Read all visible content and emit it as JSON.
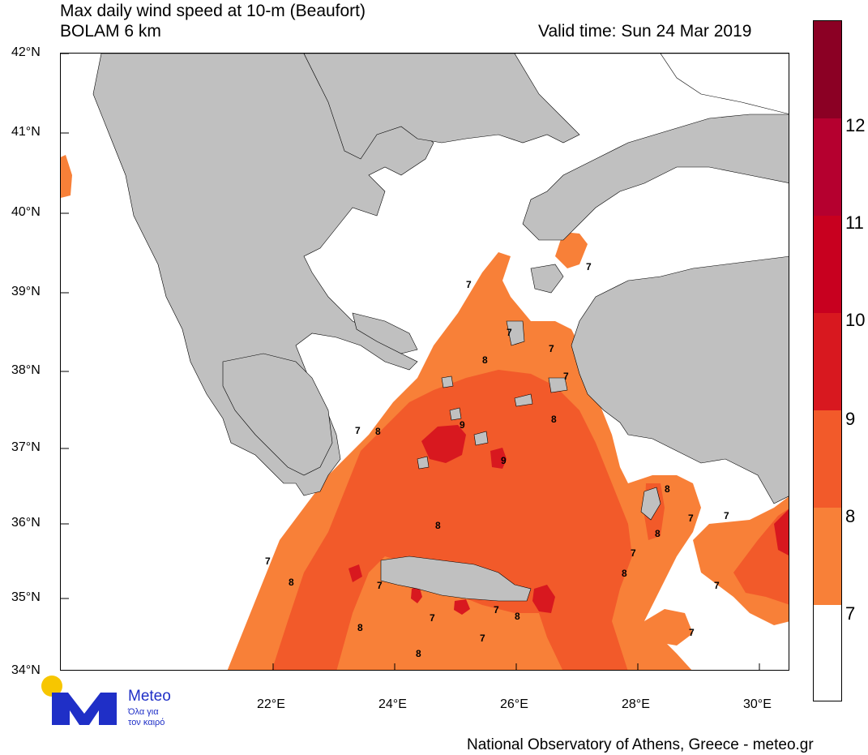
{
  "header": {
    "title_line1": "Max daily wind speed at 10-m (Beaufort)",
    "title_line2": "BOLAM 6 km",
    "valid_time": "Valid time: Sun 24 Mar 2019"
  },
  "axes": {
    "lat_ticks": [
      "42°N",
      "41°N",
      "40°N",
      "39°N",
      "38°N",
      "37°N",
      "36°N",
      "35°N",
      "34°N"
    ],
    "lon_ticks": [
      "22°E",
      "24°E",
      "26°E",
      "28°E",
      "30°E"
    ]
  },
  "legend": {
    "labels": [
      "12",
      "11",
      "10",
      "9",
      "8",
      "7"
    ],
    "colors": [
      "#8b0024",
      "#b5002f",
      "#d8181f",
      "#f25a2a",
      "#f88038",
      "#ffffff"
    ]
  },
  "contour_labels": [
    "7",
    "8",
    "9"
  ],
  "footer": "National Observatory of Athens, Greece - meteo.gr",
  "logo": {
    "name": "Meteo",
    "tagline1": "Όλα για",
    "tagline2": "τον καιρό",
    "sun_color": "#f7c600",
    "brand_color": "#1f2fc7"
  }
}
